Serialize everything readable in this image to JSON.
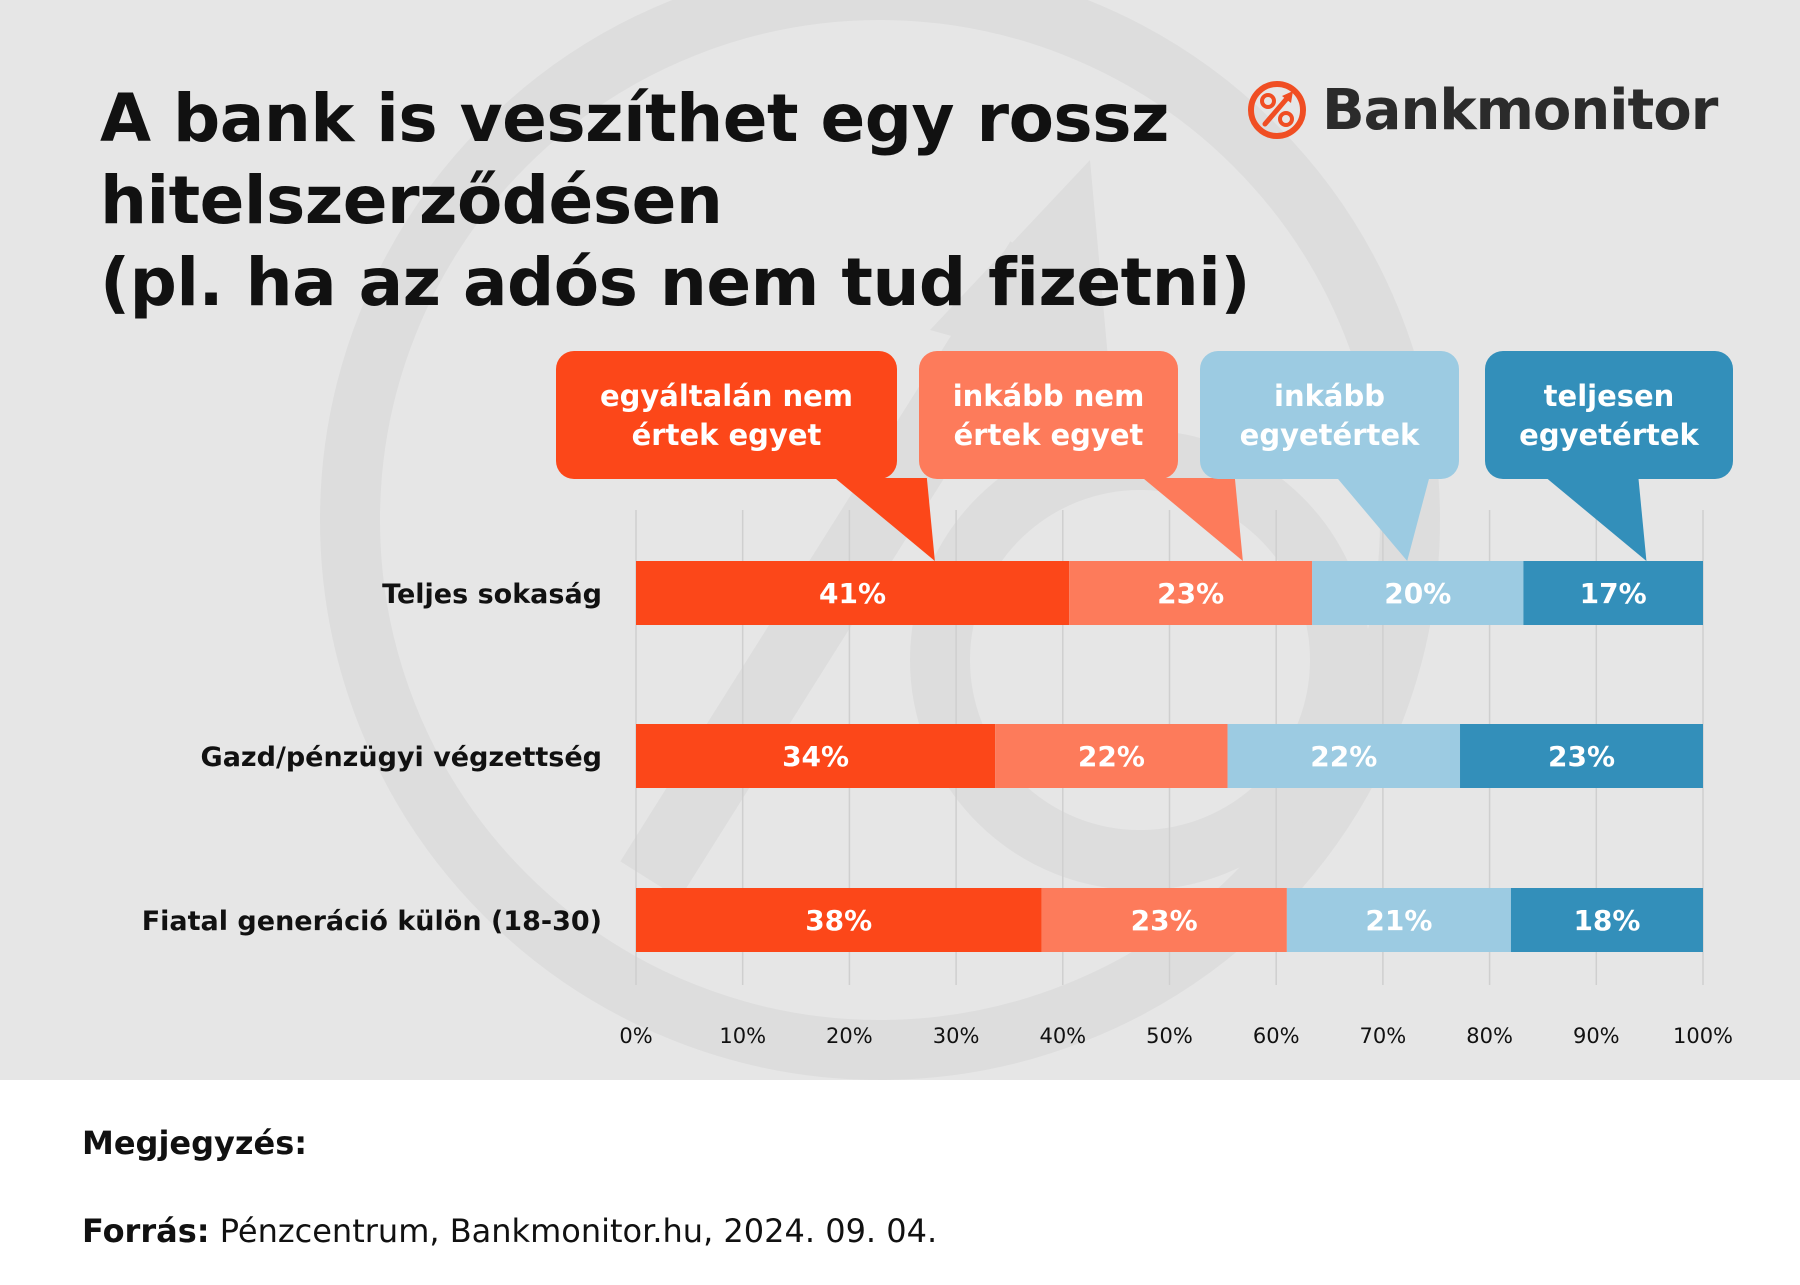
{
  "title": {
    "line1": "A bank is veszíthet egy rossz",
    "line2": "hitelszerződésen",
    "line3": "(pl. ha az adós nem tud fizetni)"
  },
  "logo": {
    "text": "Bankmonitor",
    "icon": "percent-circle-icon",
    "color": "#f04e23"
  },
  "chart_data": {
    "type": "bar",
    "orientation": "horizontal",
    "stacked": true,
    "categories": [
      "Teljes sokaság",
      "Gazd/pénzügyi végzettség",
      "Fiatal generáció külön (18-30)"
    ],
    "series": [
      {
        "name": "egyáltalán nem értek egyet",
        "name_lines": [
          "egyáltalán nem",
          "értek egyet"
        ],
        "color": "#fc4719",
        "values": [
          41,
          34,
          38
        ],
        "labels": [
          "41%",
          "34%",
          "38%"
        ]
      },
      {
        "name": "inkább nem értek egyet",
        "name_lines": [
          "inkább nem",
          "értek egyet"
        ],
        "color": "#fd7b5b",
        "values": [
          23,
          22,
          23
        ],
        "labels": [
          "23%",
          "22%",
          "23%"
        ]
      },
      {
        "name": "inkább egyetértek",
        "name_lines": [
          "inkább",
          "egyetértek"
        ],
        "color": "#9ccbe2",
        "values": [
          20,
          22,
          21
        ],
        "labels": [
          "20%",
          "22%",
          "21%"
        ]
      },
      {
        "name": "teljesen egyetértek",
        "name_lines": [
          "teljesen",
          "egyetértek"
        ],
        "color": "#338fba",
        "values": [
          17,
          23,
          18
        ],
        "labels": [
          "17%",
          "23%",
          "18%"
        ]
      }
    ],
    "x_ticks": [
      "0%",
      "10%",
      "20%",
      "30%",
      "40%",
      "50%",
      "60%",
      "70%",
      "80%",
      "90%",
      "100%"
    ],
    "xlim": [
      0,
      100
    ],
    "grid": true,
    "legend": "callouts above bars"
  },
  "footer": {
    "note_label": "Megjegyzés:",
    "source_label": "Forrás:",
    "source_text": " Pénzcentrum, Bankmonitor.hu, 2024. 09. 04."
  }
}
